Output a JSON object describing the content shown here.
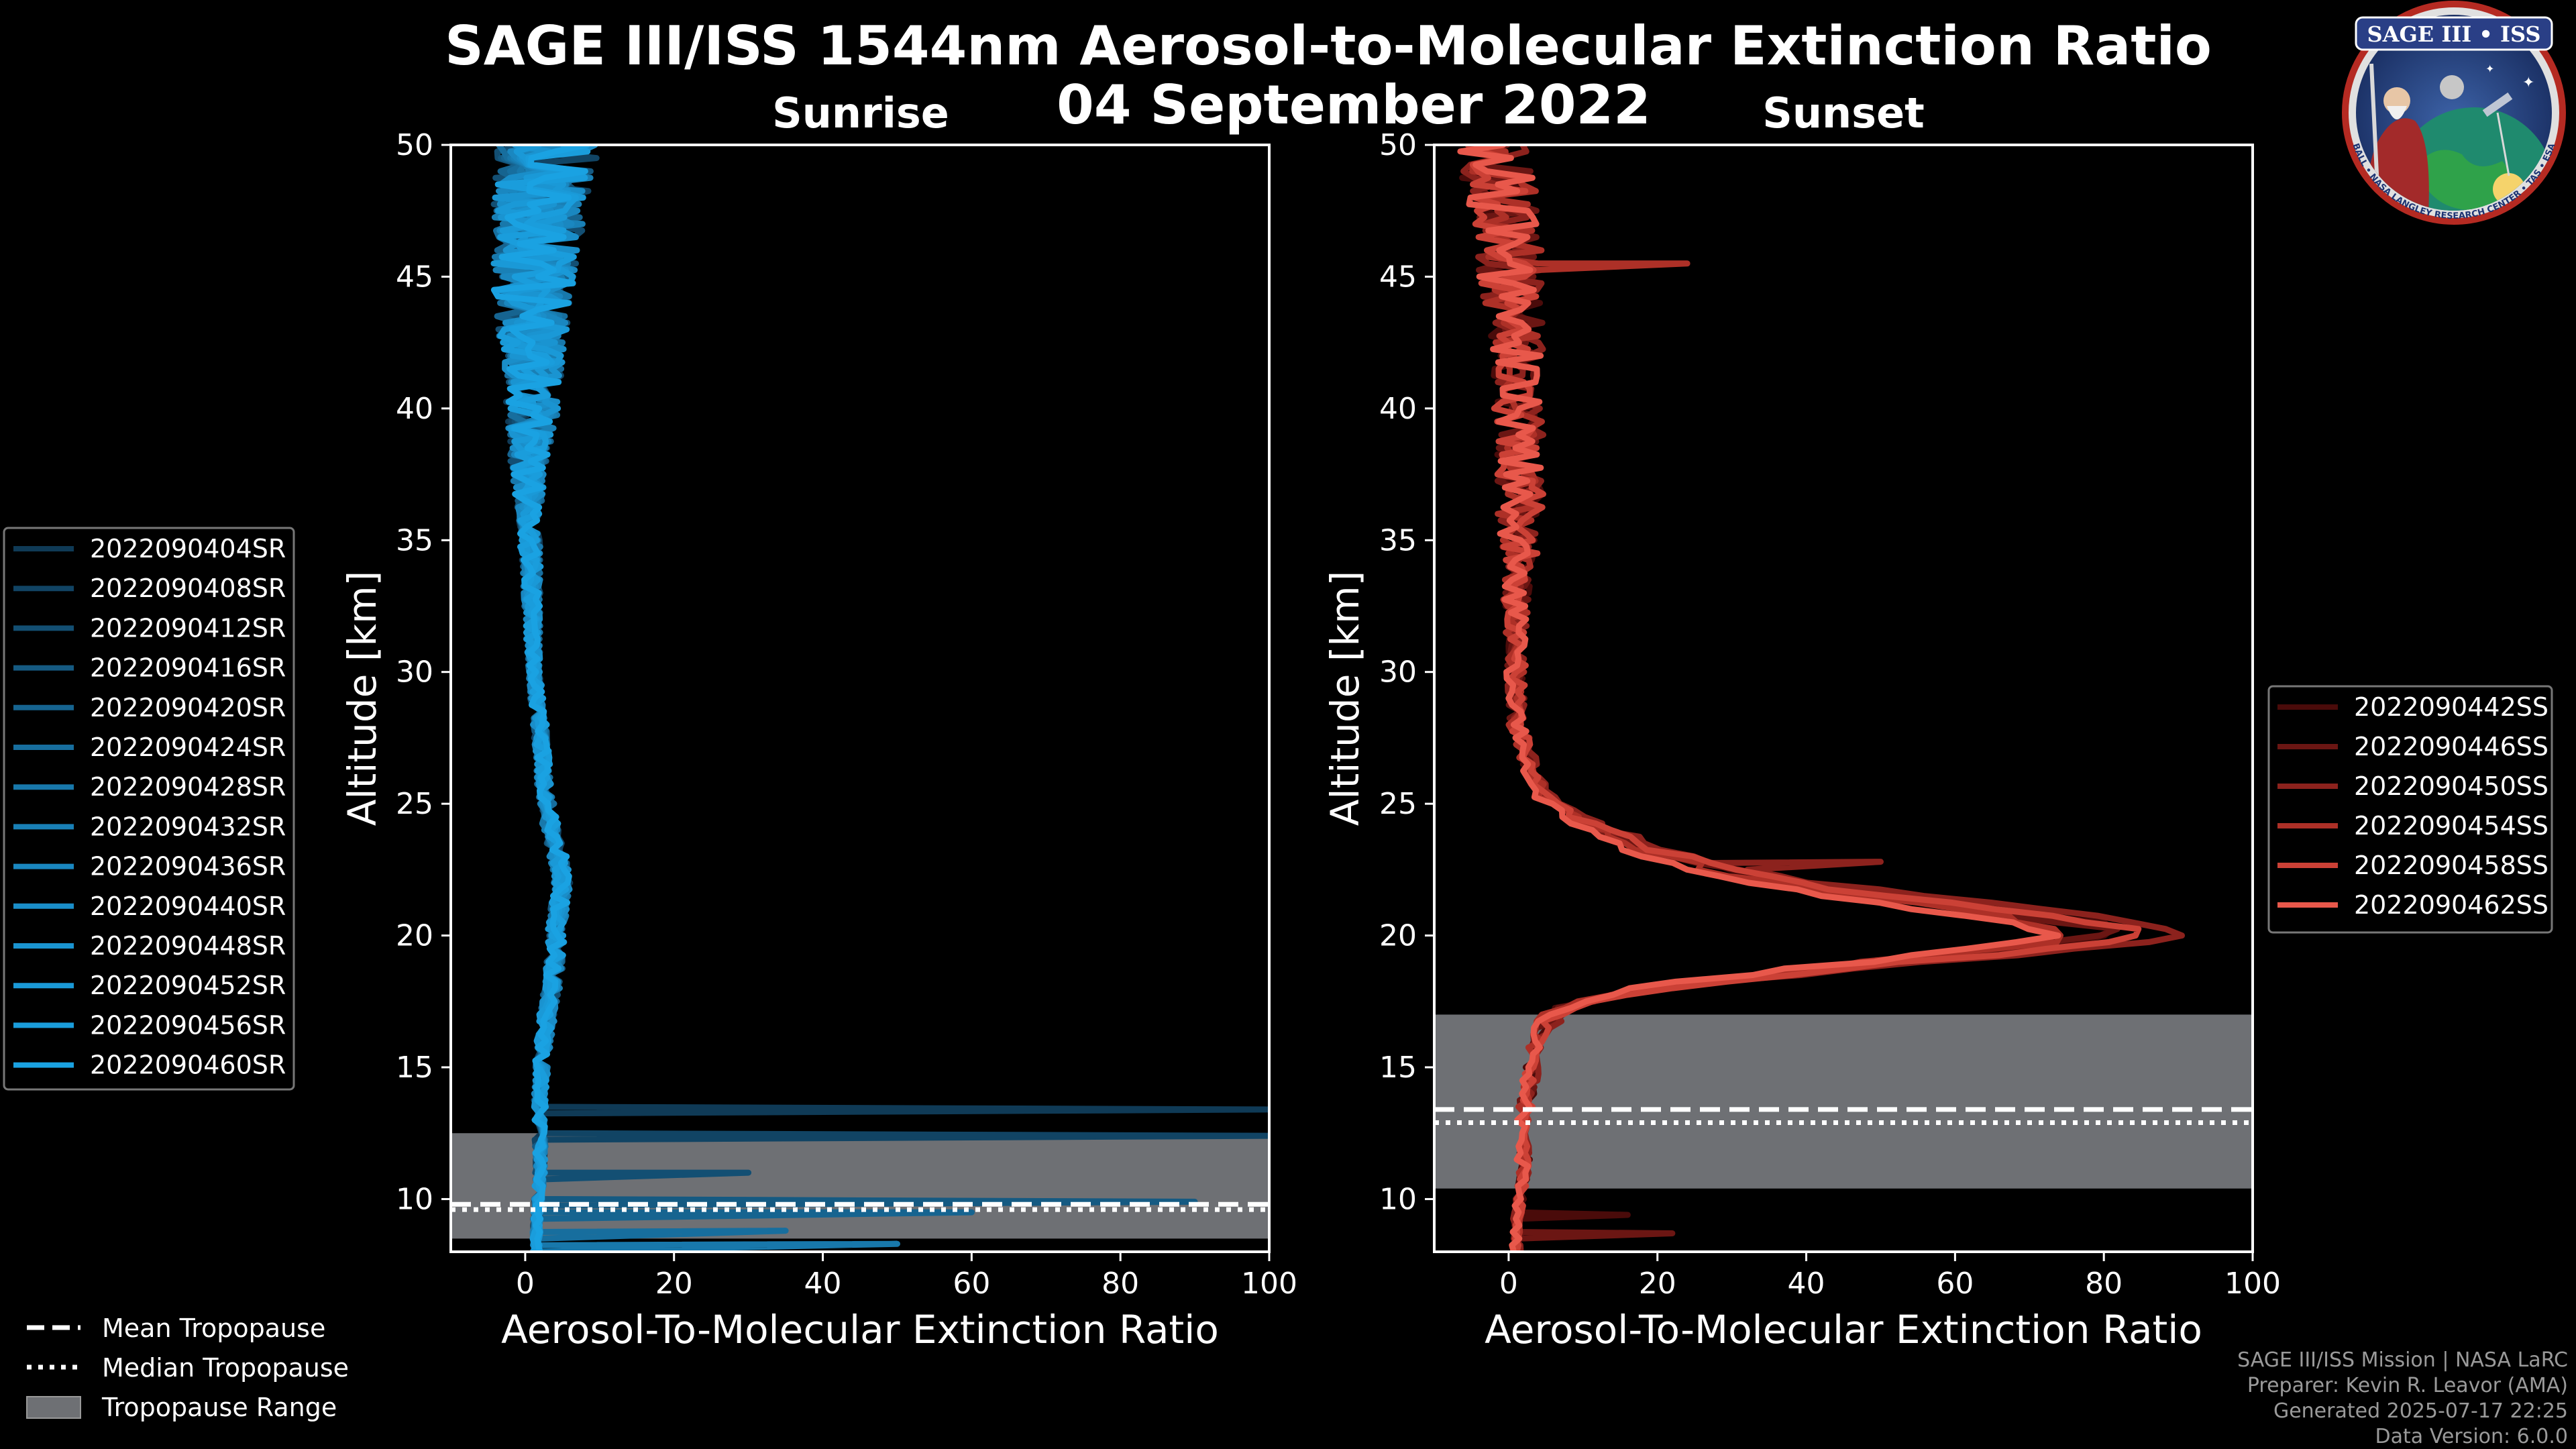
{
  "title": "SAGE III/ISS 1544nm Aerosol-to-Molecular Extinction Ratio",
  "date": "04 September 2022",
  "logo": {
    "text": "SAGE III • ISS",
    "subtext": "BALL • NASA LANGLEY RESEARCH CENTER • TAS • ESA"
  },
  "credits": {
    "mission": "SAGE III/ISS Mission | NASA LaRC",
    "preparer": "Preparer: Kevin R. Leavor (AMA)",
    "generated": "Generated 2025-07-17 22:25",
    "version": "Data Version: 6.0.0"
  },
  "common_legend": [
    {
      "label": "Mean Tropopause",
      "style": "dashed"
    },
    {
      "label": "Median Tropopause",
      "style": "dotted"
    },
    {
      "label": "Tropopause Range",
      "style": "patch"
    }
  ],
  "colors": {
    "background": "#000000",
    "tropopause_range": "#6e7074",
    "sunrise_base": "#1a9fde",
    "sunset_base": "#e8584b"
  },
  "chart_data": [
    {
      "type": "line",
      "title": "Sunrise",
      "xlabel": "Aerosol-To-Molecular Extinction Ratio",
      "ylabel": "Altitude [km]",
      "xlim": [
        -10,
        100
      ],
      "ylim": [
        8,
        50
      ],
      "xticks": [
        0,
        20,
        40,
        60,
        80,
        100
      ],
      "yticks": [
        10,
        15,
        20,
        25,
        30,
        35,
        40,
        45,
        50
      ],
      "tropopause": {
        "mean": 9.8,
        "median": 9.6,
        "range": [
          8.5,
          12.5
        ]
      },
      "series": [
        {
          "name": "2022090404SR",
          "color": "#0f3a56"
        },
        {
          "name": "2022090408SR",
          "color": "#114464"
        },
        {
          "name": "2022090412SR",
          "color": "#134f73"
        },
        {
          "name": "2022090416SR",
          "color": "#155a82"
        },
        {
          "name": "2022090420SR",
          "color": "#166490"
        },
        {
          "name": "2022090424SR",
          "color": "#176e9e"
        },
        {
          "name": "2022090428SR",
          "color": "#1878ab"
        },
        {
          "name": "2022090432SR",
          "color": "#1980b6"
        },
        {
          "name": "2022090436SR",
          "color": "#1a87c0"
        },
        {
          "name": "2022090440SR",
          "color": "#1a8ec9"
        },
        {
          "name": "2022090448SR",
          "color": "#1a94d1"
        },
        {
          "name": "2022090452SR",
          "color": "#1a99d7"
        },
        {
          "name": "2022090456SR",
          "color": "#1a9ddc"
        },
        {
          "name": "2022090460SR",
          "color": "#1aa2e2"
        }
      ],
      "profile": {
        "altitudes": [
          8,
          9,
          10,
          11,
          12,
          13,
          14,
          15,
          16,
          17,
          18,
          19,
          20,
          21,
          22,
          23,
          24,
          25,
          26,
          27,
          28,
          29,
          30,
          32,
          34,
          36,
          38,
          40,
          42,
          44,
          46,
          48,
          49.5
        ],
        "values": [
          1.5,
          1.5,
          1.8,
          2,
          2,
          2,
          2,
          2.2,
          2.5,
          3,
          3.5,
          4,
          4.2,
          4.5,
          5,
          4.5,
          3.5,
          3,
          2.5,
          2.2,
          2,
          1.5,
          1.2,
          1,
          0.8,
          0.5,
          0.5,
          1,
          1,
          1,
          1.5,
          2,
          3
        ],
        "noise_by_altitude": [
          [
            8,
            0.5
          ],
          [
            20,
            1.2
          ],
          [
            30,
            0.8
          ],
          [
            36,
            1.5
          ],
          [
            40,
            3.5
          ],
          [
            45,
            5.5
          ],
          [
            50,
            7
          ]
        ]
      },
      "spikes": [
        {
          "alt": 13.4,
          "value": 100
        },
        {
          "alt": 12.4,
          "value": 100
        },
        {
          "alt": 11.0,
          "value": 30
        },
        {
          "alt": 9.9,
          "value": 90
        },
        {
          "alt": 9.5,
          "value": 60
        },
        {
          "alt": 8.8,
          "value": 35
        },
        {
          "alt": 8.3,
          "value": 50
        }
      ]
    },
    {
      "type": "line",
      "title": "Sunset",
      "xlabel": "Aerosol-To-Molecular Extinction Ratio",
      "ylabel": "Altitude [km]",
      "xlim": [
        -10,
        100
      ],
      "ylim": [
        8,
        50
      ],
      "xticks": [
        0,
        20,
        40,
        60,
        80,
        100
      ],
      "yticks": [
        10,
        15,
        20,
        25,
        30,
        35,
        40,
        45,
        50
      ],
      "tropopause": {
        "mean": 13.4,
        "median": 12.9,
        "range": [
          10.4,
          17.0
        ]
      },
      "series": [
        {
          "name": "2022090442SS",
          "color": "#4a0b0a",
          "peak": 85
        },
        {
          "name": "2022090446SS",
          "color": "#6b1613",
          "peak": 82
        },
        {
          "name": "2022090450SS",
          "color": "#8c221d",
          "peak": 91
        },
        {
          "name": "2022090454SS",
          "color": "#ad3027",
          "peak": 78
        },
        {
          "name": "2022090458SS",
          "color": "#cb4136",
          "peak": 86
        },
        {
          "name": "2022090462SS",
          "color": "#e8584b",
          "peak": 73
        }
      ],
      "profile": {
        "altitudes": [
          8,
          9,
          10,
          11,
          12,
          13,
          14,
          15,
          16,
          17,
          17.5,
          18,
          18.5,
          19,
          19.5,
          20,
          20.5,
          21,
          21.5,
          22,
          22.5,
          23,
          23.5,
          24,
          24.5,
          25,
          26,
          27,
          28,
          30,
          32,
          35,
          38,
          42,
          46,
          48,
          49.5
        ],
        "values": [
          1,
          1,
          1.5,
          2,
          2,
          2,
          2.5,
          3,
          4,
          6,
          12,
          22,
          38,
          55,
          72,
          80,
          70,
          58,
          45,
          34,
          26,
          20,
          15,
          11,
          8,
          5,
          3,
          2,
          1,
          1,
          1,
          1.5,
          1.5,
          1,
          0,
          -1,
          -2
        ],
        "noise_by_altitude": [
          [
            8,
            0.6
          ],
          [
            16,
            1
          ],
          [
            20,
            3
          ],
          [
            26,
            1
          ],
          [
            32,
            1.5
          ],
          [
            36,
            3
          ],
          [
            42,
            3.5
          ],
          [
            46,
            4.5
          ],
          [
            50,
            5
          ]
        ]
      },
      "spikes": [
        {
          "alt": 9.4,
          "value": 16
        },
        {
          "alt": 8.7,
          "value": 22
        },
        {
          "alt": 22.8,
          "value": 50
        },
        {
          "alt": 45.5,
          "value": 24
        }
      ]
    }
  ]
}
